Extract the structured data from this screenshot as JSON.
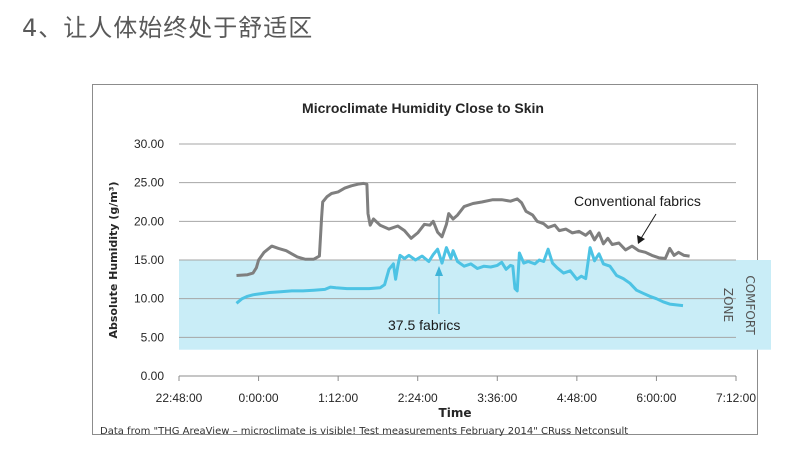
{
  "page": {
    "heading": "4、让人体始终处于舒适区"
  },
  "chart_data": {
    "type": "line",
    "title": "Microclimate Humidity Close to Skin",
    "xlabel": "Time",
    "ylabel": "Absolute Humidity  (g/m³)",
    "ylim": [
      0,
      30
    ],
    "xlim_minutes": [
      -72,
      432
    ],
    "yticks": [
      "0.00",
      "5.00",
      "10.00",
      "15.00",
      "20.00",
      "25.00",
      "30.00"
    ],
    "xticks": [
      "22:48:00",
      "0:00:00",
      "1:12:00",
      "2:24:00",
      "3:36:00",
      "4:48:00",
      "6:00:00",
      "7:12:00"
    ],
    "grid": true,
    "comfort_zone": {
      "ymin": 3.4,
      "ymax": 15.0,
      "label_line1": "COMFORT",
      "label_line2": "ZONE",
      "color": "#c9edf7"
    },
    "source_note": "Data from \"THG AreaView – microclimate is visible! Test measurements February 2014\" CRuss Netconsult",
    "series": [
      {
        "name": "Conventional fabrics",
        "color": "#7f7f7f",
        "annotation": "Conventional fabrics",
        "points": [
          [
            -20,
            13.0
          ],
          [
            -10,
            13.1
          ],
          [
            -5,
            13.3
          ],
          [
            -2,
            14.0
          ],
          [
            0,
            15.0
          ],
          [
            5,
            16.0
          ],
          [
            12,
            16.8
          ],
          [
            18,
            16.5
          ],
          [
            25,
            16.2
          ],
          [
            30,
            15.8
          ],
          [
            35,
            15.4
          ],
          [
            42,
            15.1
          ],
          [
            50,
            15.1
          ],
          [
            55,
            15.5
          ],
          [
            57,
            20.5
          ],
          [
            58,
            22.5
          ],
          [
            62,
            23.2
          ],
          [
            66,
            23.6
          ],
          [
            72,
            23.8
          ],
          [
            78,
            24.3
          ],
          [
            84,
            24.6
          ],
          [
            90,
            24.8
          ],
          [
            95,
            24.9
          ],
          [
            98,
            24.8
          ],
          [
            99,
            21.0
          ],
          [
            101,
            19.5
          ],
          [
            104,
            20.3
          ],
          [
            110,
            19.5
          ],
          [
            118,
            19.0
          ],
          [
            126,
            19.4
          ],
          [
            132,
            18.8
          ],
          [
            138,
            17.8
          ],
          [
            144,
            18.5
          ],
          [
            150,
            19.6
          ],
          [
            155,
            19.5
          ],
          [
            158,
            20.0
          ],
          [
            162,
            18.6
          ],
          [
            166,
            18.0
          ],
          [
            170,
            19.6
          ],
          [
            172,
            21.0
          ],
          [
            176,
            20.3
          ],
          [
            180,
            20.8
          ],
          [
            186,
            21.9
          ],
          [
            194,
            22.3
          ],
          [
            202,
            22.5
          ],
          [
            212,
            22.8
          ],
          [
            220,
            22.8
          ],
          [
            228,
            22.6
          ],
          [
            234,
            22.9
          ],
          [
            238,
            22.4
          ],
          [
            242,
            21.3
          ],
          [
            248,
            20.8
          ],
          [
            252,
            20.0
          ],
          [
            258,
            19.7
          ],
          [
            262,
            19.2
          ],
          [
            268,
            19.5
          ],
          [
            272,
            18.8
          ],
          [
            278,
            19.0
          ],
          [
            284,
            18.5
          ],
          [
            290,
            18.7
          ],
          [
            296,
            18.2
          ],
          [
            300,
            18.7
          ],
          [
            304,
            17.6
          ],
          [
            308,
            18.5
          ],
          [
            312,
            17.1
          ],
          [
            316,
            17.8
          ],
          [
            320,
            17.0
          ],
          [
            326,
            17.2
          ],
          [
            332,
            16.3
          ],
          [
            338,
            16.8
          ],
          [
            344,
            16.2
          ],
          [
            350,
            16.0
          ],
          [
            356,
            15.6
          ],
          [
            362,
            15.3
          ],
          [
            368,
            15.2
          ],
          [
            372,
            16.5
          ],
          [
            376,
            15.6
          ],
          [
            380,
            16.0
          ],
          [
            385,
            15.6
          ],
          [
            390,
            15.5
          ]
        ]
      },
      {
        "name": "37.5 fabrics",
        "color": "#4dc3e4",
        "annotation": "37.5 fabrics",
        "points": [
          [
            -20,
            9.4
          ],
          [
            -15,
            10.0
          ],
          [
            -10,
            10.3
          ],
          [
            -5,
            10.5
          ],
          [
            0,
            10.6
          ],
          [
            10,
            10.8
          ],
          [
            20,
            10.9
          ],
          [
            30,
            11.0
          ],
          [
            40,
            11.0
          ],
          [
            50,
            11.1
          ],
          [
            60,
            11.2
          ],
          [
            65,
            11.5
          ],
          [
            70,
            11.4
          ],
          [
            80,
            11.3
          ],
          [
            90,
            11.3
          ],
          [
            100,
            11.3
          ],
          [
            110,
            11.4
          ],
          [
            114,
            11.8
          ],
          [
            118,
            13.8
          ],
          [
            122,
            14.5
          ],
          [
            124,
            12.5
          ],
          [
            126,
            14.2
          ],
          [
            128,
            15.6
          ],
          [
            132,
            15.2
          ],
          [
            136,
            15.6
          ],
          [
            142,
            15.0
          ],
          [
            148,
            15.5
          ],
          [
            154,
            14.8
          ],
          [
            158,
            15.7
          ],
          [
            162,
            16.4
          ],
          [
            166,
            14.6
          ],
          [
            170,
            16.6
          ],
          [
            174,
            15.2
          ],
          [
            176,
            16.2
          ],
          [
            180,
            14.8
          ],
          [
            186,
            14.2
          ],
          [
            192,
            14.5
          ],
          [
            198,
            13.9
          ],
          [
            204,
            14.2
          ],
          [
            210,
            14.1
          ],
          [
            216,
            14.3
          ],
          [
            220,
            14.7
          ],
          [
            224,
            13.8
          ],
          [
            228,
            14.3
          ],
          [
            230,
            14.2
          ],
          [
            232,
            11.3
          ],
          [
            234,
            11.0
          ],
          [
            236,
            15.9
          ],
          [
            240,
            14.6
          ],
          [
            244,
            14.8
          ],
          [
            250,
            14.5
          ],
          [
            254,
            15.0
          ],
          [
            258,
            14.8
          ],
          [
            262,
            16.4
          ],
          [
            266,
            14.6
          ],
          [
            270,
            14.0
          ],
          [
            276,
            13.3
          ],
          [
            282,
            13.6
          ],
          [
            288,
            12.5
          ],
          [
            292,
            12.9
          ],
          [
            296,
            12.6
          ],
          [
            300,
            16.6
          ],
          [
            304,
            14.9
          ],
          [
            308,
            15.8
          ],
          [
            312,
            14.5
          ],
          [
            318,
            14.2
          ],
          [
            324,
            13.0
          ],
          [
            330,
            12.6
          ],
          [
            336,
            12.0
          ],
          [
            342,
            11.1
          ],
          [
            348,
            10.7
          ],
          [
            354,
            10.3
          ],
          [
            360,
            10.0
          ],
          [
            366,
            9.6
          ],
          [
            372,
            9.3
          ],
          [
            378,
            9.2
          ],
          [
            384,
            9.1
          ]
        ]
      }
    ]
  }
}
